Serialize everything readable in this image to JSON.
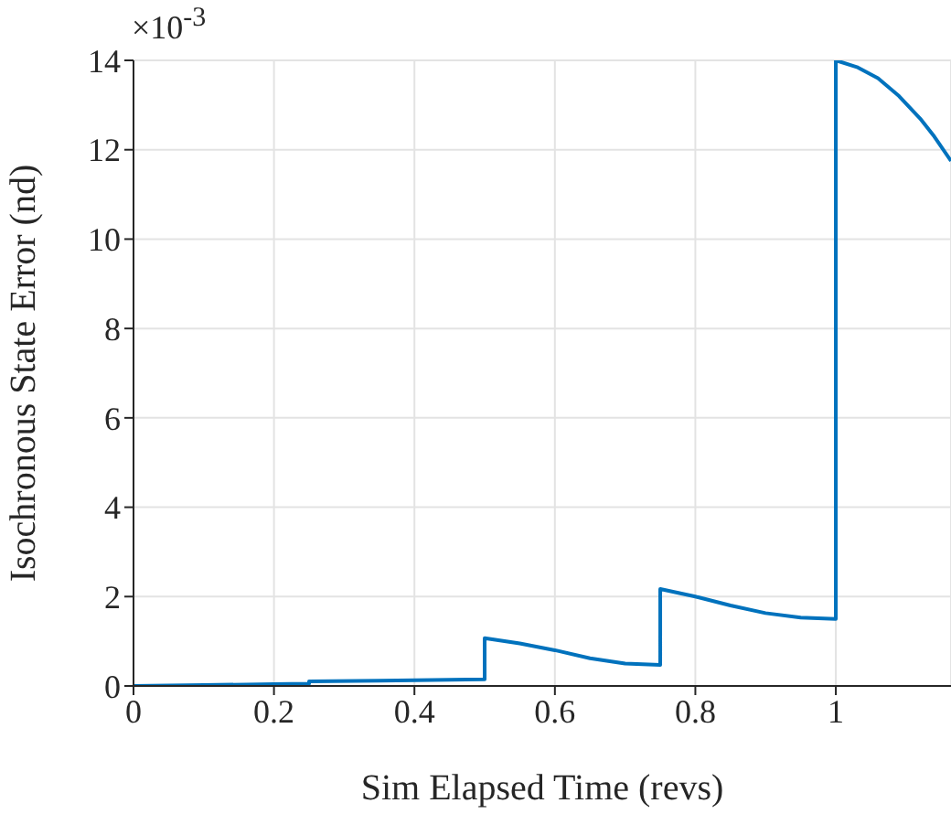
{
  "chart_data": {
    "type": "line",
    "xlabel": "Sim Elapsed Time (revs)",
    "ylabel": "Isochronous State Error (nd)",
    "annotations": [
      "×10$^{-3}$"
    ],
    "x": [
      0,
      0.1,
      0.2,
      0.25,
      0.25,
      0.35,
      0.45,
      0.5,
      0.5,
      0.55,
      0.6,
      0.65,
      0.7,
      0.75,
      0.75,
      0.8,
      0.85,
      0.9,
      0.95,
      1.0,
      1.0,
      1.03,
      1.06,
      1.09,
      1.12,
      1.14,
      1.164
    ],
    "series": [
      {
        "color": "#0072bd",
        "values": [
          0,
          0.02,
          0.04,
          0.05,
          0.1,
          0.12,
          0.14,
          0.15,
          1.07,
          0.95,
          0.8,
          0.62,
          0.5,
          0.47,
          2.17,
          2.0,
          1.8,
          1.63,
          1.53,
          1.5,
          14,
          13.85,
          13.6,
          13.2,
          12.7,
          12.3,
          11.75
        ]
      }
    ],
    "xlim": [
      0,
      1.164
    ],
    "xticks": [
      0,
      0.2,
      0.4,
      0.6,
      0.8,
      1
    ],
    "ylim": [
      0,
      14
    ],
    "yticks": [
      0,
      2,
      4,
      6,
      8,
      10,
      12,
      14
    ],
    "grid": true,
    "marker": "none",
    "line_style": "solid"
  }
}
